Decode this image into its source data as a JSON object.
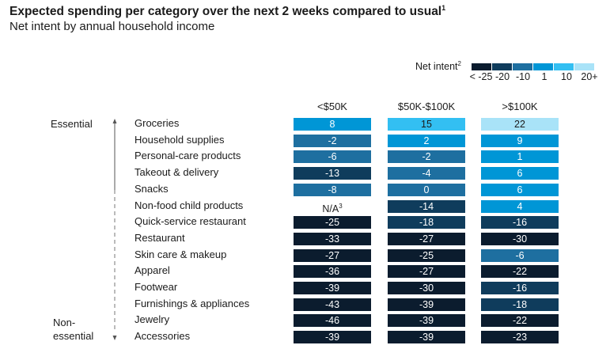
{
  "chart_data": {
    "type": "heatmap",
    "title": "Expected spending per category over the next 2 weeks compared to usual",
    "title_superscript": "1",
    "subtitle": "Net intent by annual household income",
    "legend": {
      "title": "Net intent",
      "title_superscript": "2",
      "bins": [
        {
          "label": "< -25",
          "color": "#0b1c2e"
        },
        {
          "label": "-20",
          "color": "#0f3c5c"
        },
        {
          "label": "-10",
          "color": "#1e6fa0"
        },
        {
          "label": "1",
          "color": "#0096d6"
        },
        {
          "label": "10",
          "color": "#33bff2"
        },
        {
          "label": "20+",
          "color": "#a9e3f8"
        }
      ]
    },
    "columns": [
      "<$50K",
      "$50K-$100K",
      ">$100K"
    ],
    "side_labels": {
      "top": "Essential",
      "bottom_line1": "Non-",
      "bottom_line2": "essential"
    },
    "rows": [
      {
        "category": "Groceries",
        "values": [
          8,
          15,
          22
        ]
      },
      {
        "category": "Household supplies",
        "values": [
          -2,
          2,
          9
        ]
      },
      {
        "category": "Personal-care products",
        "values": [
          -6,
          -2,
          1
        ]
      },
      {
        "category": "Takeout & delivery",
        "values": [
          -13,
          -4,
          6
        ]
      },
      {
        "category": "Snacks",
        "values": [
          -8,
          0,
          6
        ]
      },
      {
        "category": "Non-food child products",
        "values": [
          null,
          -14,
          4
        ]
      },
      {
        "category": "Quick-service restaurant",
        "values": [
          -25,
          -18,
          -16
        ]
      },
      {
        "category": "Restaurant",
        "values": [
          -33,
          -27,
          -30
        ]
      },
      {
        "category": "Skin care & makeup",
        "values": [
          -27,
          -25,
          -6
        ]
      },
      {
        "category": "Apparel",
        "values": [
          -36,
          -27,
          -22
        ]
      },
      {
        "category": "Footwear",
        "values": [
          -39,
          -30,
          -16
        ]
      },
      {
        "category": "Furnishings & appliances",
        "values": [
          -43,
          -39,
          -18
        ]
      },
      {
        "category": "Jewelry",
        "values": [
          -46,
          -39,
          -22
        ]
      },
      {
        "category": "Accessories",
        "values": [
          -39,
          -39,
          -23
        ]
      }
    ],
    "na_label": "N/A",
    "na_superscript": "3"
  }
}
